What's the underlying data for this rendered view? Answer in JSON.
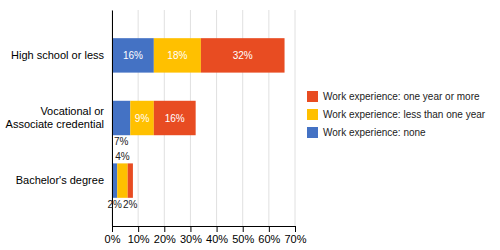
{
  "chart_data": {
    "type": "bar",
    "orientation": "horizontal",
    "stacked": true,
    "categories": [
      "High school or less",
      "Vocational or\nAssociate credential",
      "Bachelor's degree"
    ],
    "series": [
      {
        "name": "Work experience: none",
        "color": "#4472C4",
        "values": [
          16,
          7,
          2
        ],
        "value_labels": [
          "16%",
          "7%",
          "2%"
        ]
      },
      {
        "name": "Work experience: less than one year",
        "color": "#FFC000",
        "values": [
          18,
          9,
          4
        ],
        "value_labels": [
          "18%",
          "9%",
          "4%"
        ]
      },
      {
        "name": "Work experience: one year or more",
        "color": "#E84C22",
        "values": [
          32,
          16,
          2
        ],
        "value_labels": [
          "32%",
          "16%",
          "2%"
        ]
      }
    ],
    "xlim": [
      0,
      70
    ],
    "xticks": [
      {
        "value": 0,
        "label": "0%"
      },
      {
        "value": 10,
        "label": "10%"
      },
      {
        "value": 20,
        "label": "20%"
      },
      {
        "value": 30,
        "label": "30%"
      },
      {
        "value": 40,
        "label": "40%"
      },
      {
        "value": 50,
        "label": "50%"
      },
      {
        "value": 60,
        "label": "60%"
      },
      {
        "value": 70,
        "label": "70%"
      }
    ],
    "grid": true,
    "legend": "right",
    "data_labels": true
  }
}
